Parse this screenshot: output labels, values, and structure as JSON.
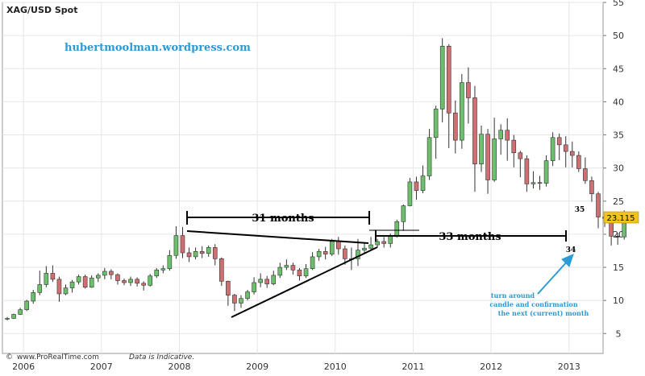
{
  "chart_data": {
    "type": "candlestick",
    "title": "XAG/USD Spot",
    "watermark": "hubertmoolman.wordpress.com",
    "footer": {
      "copyright": "©",
      "source": "www.ProRealTime.com",
      "disclaimer": "Data is Indicative."
    },
    "current_price_label": "23.115",
    "x_ticks": [
      "2006",
      "2007",
      "2008",
      "2009",
      "2010",
      "2011",
      "2012",
      "2013"
    ],
    "y_ticks": [
      5,
      10,
      15,
      20,
      25,
      30,
      35,
      40,
      45,
      50,
      55
    ],
    "ylim": [
      2,
      55
    ],
    "xlim": [
      0,
      91
    ],
    "grid": true,
    "candle_colors": {
      "up": "#6cc06c",
      "down": "#d06f72",
      "current": "#000000"
    },
    "candles": [
      [
        7.2,
        7.3,
        7.0,
        7.5
      ],
      [
        7.3,
        7.9,
        7.2,
        8.0
      ],
      [
        7.9,
        8.6,
        7.8,
        8.9
      ],
      [
        8.6,
        9.9,
        8.4,
        10.1
      ],
      [
        9.9,
        11.2,
        9.5,
        11.6
      ],
      [
        11.2,
        12.4,
        10.8,
        14.5
      ],
      [
        12.4,
        14.1,
        12.0,
        15.2
      ],
      [
        14.1,
        13.2,
        12.8,
        15.3
      ],
      [
        13.2,
        11.0,
        9.8,
        13.6
      ],
      [
        11.0,
        11.9,
        10.8,
        12.4
      ],
      [
        11.9,
        12.8,
        11.2,
        13.1
      ],
      [
        12.8,
        13.6,
        12.4,
        13.9
      ],
      [
        13.6,
        12.0,
        11.8,
        13.9
      ],
      [
        12.0,
        13.4,
        11.9,
        13.8
      ],
      [
        13.4,
        13.8,
        12.8,
        14.1
      ],
      [
        13.8,
        14.4,
        13.2,
        14.9
      ],
      [
        14.4,
        13.9,
        13.2,
        14.7
      ],
      [
        13.9,
        13.0,
        12.4,
        14.1
      ],
      [
        13.0,
        12.7,
        12.3,
        13.3
      ],
      [
        12.7,
        13.2,
        12.2,
        13.6
      ],
      [
        13.2,
        12.6,
        12.1,
        13.5
      ],
      [
        12.6,
        12.3,
        11.5,
        12.9
      ],
      [
        12.3,
        13.7,
        12.1,
        14.0
      ],
      [
        13.7,
        14.6,
        13.4,
        14.9
      ],
      [
        14.6,
        14.8,
        14.1,
        15.3
      ],
      [
        14.8,
        16.8,
        14.5,
        17.6
      ],
      [
        16.8,
        19.8,
        16.3,
        21.2
      ],
      [
        19.8,
        17.2,
        16.4,
        21.1
      ],
      [
        17.2,
        16.6,
        15.8,
        18.0
      ],
      [
        16.6,
        17.4,
        16.2,
        18.0
      ],
      [
        17.4,
        17.1,
        16.4,
        18.2
      ],
      [
        17.1,
        18.0,
        16.6,
        18.3
      ],
      [
        18.0,
        16.3,
        15.3,
        18.5
      ],
      [
        16.3,
        12.9,
        12.2,
        16.5
      ],
      [
        12.9,
        10.8,
        9.2,
        13.0
      ],
      [
        10.8,
        9.6,
        8.4,
        11.0
      ],
      [
        9.6,
        10.3,
        8.9,
        10.8
      ],
      [
        10.3,
        11.3,
        10.0,
        11.6
      ],
      [
        11.3,
        12.7,
        10.9,
        13.5
      ],
      [
        12.7,
        13.2,
        12.0,
        14.1
      ],
      [
        13.2,
        12.5,
        11.9,
        13.7
      ],
      [
        12.5,
        13.8,
        12.3,
        14.5
      ],
      [
        13.8,
        15.0,
        13.4,
        15.7
      ],
      [
        15.0,
        15.3,
        14.6,
        16.2
      ],
      [
        15.3,
        14.6,
        13.9,
        15.7
      ],
      [
        14.6,
        13.7,
        13.0,
        14.9
      ],
      [
        13.7,
        14.8,
        13.4,
        15.5
      ],
      [
        14.8,
        16.6,
        14.6,
        17.3
      ],
      [
        16.6,
        17.4,
        16.0,
        17.8
      ],
      [
        17.4,
        17.0,
        16.2,
        18.1
      ],
      [
        17.0,
        18.9,
        16.7,
        19.3
      ],
      [
        18.9,
        17.8,
        16.9,
        19.6
      ],
      [
        17.8,
        16.3,
        15.4,
        18.3
      ],
      [
        16.3,
        16.3,
        14.6,
        18.0
      ],
      [
        16.3,
        17.6,
        15.2,
        19.3
      ],
      [
        17.6,
        17.9,
        17.1,
        18.6
      ],
      [
        17.9,
        18.4,
        17.6,
        19.6
      ],
      [
        18.4,
        18.9,
        18.0,
        19.3
      ],
      [
        18.9,
        18.6,
        18.0,
        19.6
      ],
      [
        18.6,
        19.8,
        18.0,
        20.1
      ],
      [
        19.8,
        21.9,
        19.5,
        22.2
      ],
      [
        21.9,
        24.3,
        20.5,
        24.5
      ],
      [
        24.3,
        27.9,
        24.2,
        28.5
      ],
      [
        27.9,
        26.6,
        25.2,
        28.7
      ],
      [
        26.6,
        28.8,
        26.2,
        30.4
      ],
      [
        28.8,
        34.6,
        28.2,
        35.9
      ],
      [
        34.6,
        38.9,
        31.4,
        39.4
      ],
      [
        38.9,
        48.4,
        36.9,
        49.6
      ],
      [
        48.4,
        38.3,
        33.0,
        48.7
      ],
      [
        38.3,
        34.2,
        32.2,
        40.2
      ],
      [
        34.2,
        42.9,
        32.9,
        44.2
      ],
      [
        42.9,
        40.6,
        36.7,
        45.2
      ],
      [
        40.6,
        30.6,
        26.4,
        42.4
      ],
      [
        30.6,
        35.1,
        29.4,
        36.4
      ],
      [
        35.1,
        28.2,
        26.1,
        35.9
      ],
      [
        28.2,
        34.4,
        27.9,
        37.6
      ],
      [
        34.4,
        35.7,
        32.0,
        36.6
      ],
      [
        35.7,
        34.2,
        31.1,
        37.5
      ],
      [
        34.2,
        32.3,
        30.1,
        35.0
      ],
      [
        32.3,
        31.4,
        28.6,
        32.6
      ],
      [
        31.4,
        27.6,
        26.4,
        31.9
      ],
      [
        27.6,
        27.8,
        26.9,
        29.5
      ],
      [
        27.8,
        27.7,
        26.7,
        28.8
      ],
      [
        27.7,
        31.1,
        27.2,
        31.9
      ],
      [
        31.1,
        34.6,
        30.3,
        35.4
      ],
      [
        34.6,
        33.5,
        31.2,
        35.2
      ],
      [
        33.5,
        32.5,
        30.1,
        34.8
      ],
      [
        32.5,
        31.9,
        30.1,
        34.0
      ],
      [
        31.9,
        29.9,
        29.4,
        32.5
      ],
      [
        29.9,
        28.1,
        27.6,
        31.6
      ],
      [
        28.1,
        26.1,
        24.9,
        28.7
      ],
      [
        26.1,
        22.6,
        20.9,
        26.4
      ],
      [
        22.6,
        22.4,
        21.1,
        22.6
      ],
      [
        22.4,
        19.7,
        18.3,
        22.7
      ],
      [
        19.7,
        19.6,
        18.4,
        20.2
      ],
      [
        19.6,
        23.1,
        19.2,
        23.6
      ]
    ],
    "annotations": [
      {
        "text": "31 months"
      },
      {
        "text": "33 months"
      },
      {
        "text": "35"
      },
      {
        "text": "34"
      },
      {
        "lines": [
          "turn around",
          "candle  and confirmation",
          "the next (current) month"
        ]
      }
    ]
  }
}
